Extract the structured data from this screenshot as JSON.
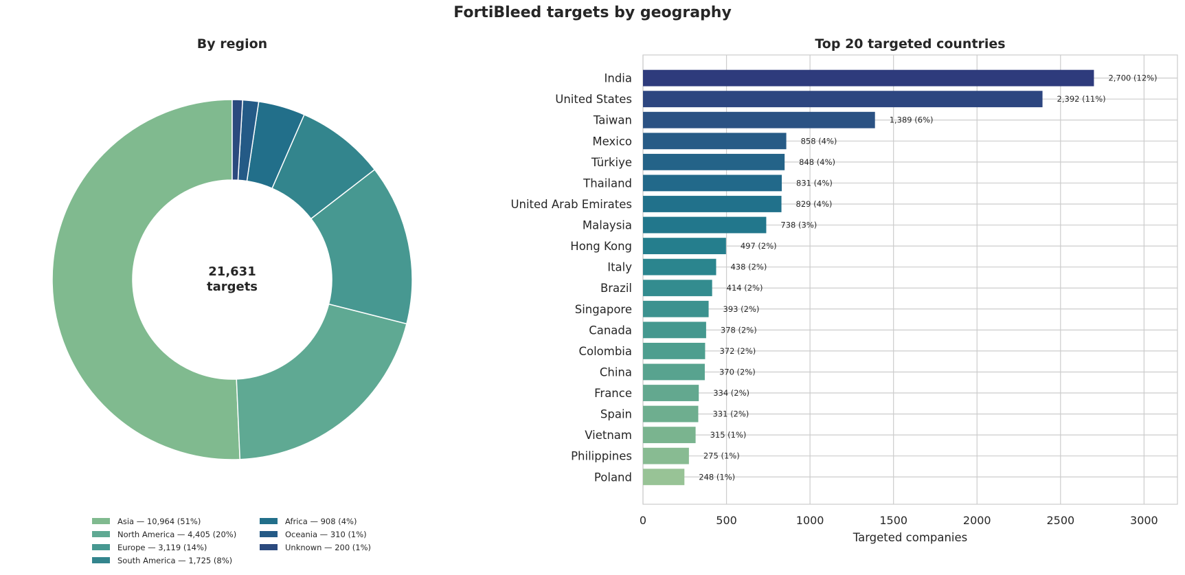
{
  "title": "FortiBleed targets by geography",
  "chart_data": [
    {
      "type": "pie",
      "title": "By region",
      "center_label": [
        "21,631",
        "targets"
      ],
      "categories": [
        "Asia",
        "North America",
        "Europe",
        "South America",
        "Africa",
        "Oceania",
        "Unknown"
      ],
      "values": [
        10964,
        4405,
        3119,
        1725,
        908,
        310,
        200
      ],
      "colors": [
        "#80ba8f",
        "#5fa993",
        "#479891",
        "#33858d",
        "#226f8a",
        "#245a86",
        "#2b4a7e"
      ],
      "legend": [
        "Asia — 10,964 (51%)",
        "North America — 4,405 (20%)",
        "Europe — 3,119 (14%)",
        "South America — 1,725 (8%)",
        "Africa — 908 (4%)",
        "Oceania — 310 (1%)",
        "Unknown — 200 (1%)"
      ],
      "legend_placement": "bottom"
    },
    {
      "type": "bar",
      "orientation": "horizontal",
      "title": "Top 20 targeted countries",
      "xlabel": "Targeted companies",
      "xlim": [
        0,
        3200
      ],
      "xticks": [
        "0",
        "500",
        "1000",
        "1500",
        "2000",
        "2500",
        "3000"
      ],
      "grid": true,
      "categories": [
        "India",
        "United States",
        "Taiwan",
        "Mexico",
        "Türkiye",
        "Thailand",
        "United Arab Emirates",
        "Malaysia",
        "Hong Kong",
        "Italy",
        "Brazil",
        "Singapore",
        "Canada",
        "Colombia",
        "China",
        "France",
        "Spain",
        "Vietnam",
        "Philippines",
        "Poland"
      ],
      "values": [
        2700,
        2392,
        1389,
        858,
        848,
        831,
        829,
        738,
        497,
        438,
        414,
        393,
        378,
        372,
        370,
        334,
        331,
        315,
        275,
        248
      ],
      "labels": [
        "2,700 (12%)",
        "2,392 (11%)",
        "1,389 (6%)",
        "858 (4%)",
        "848 (4%)",
        "831 (4%)",
        "829 (4%)",
        "738 (3%)",
        "497 (2%)",
        "438 (2%)",
        "414 (2%)",
        "393 (2%)",
        "378 (2%)",
        "372 (2%)",
        "370 (2%)",
        "334 (2%)",
        "331 (2%)",
        "315 (1%)",
        "275 (1%)",
        "248 (1%)"
      ],
      "colors": [
        "#2e3b7c",
        "#2d4680",
        "#2b5283",
        "#275b86",
        "#246388",
        "#22698a",
        "#21718b",
        "#22778c",
        "#257e8d",
        "#2b858e",
        "#338c8f",
        "#3c928f",
        "#44988f",
        "#4e9e8f",
        "#58a38f",
        "#63a88f",
        "#6eae8f",
        "#7ab48f",
        "#88bb92",
        "#98c396"
      ]
    }
  ]
}
